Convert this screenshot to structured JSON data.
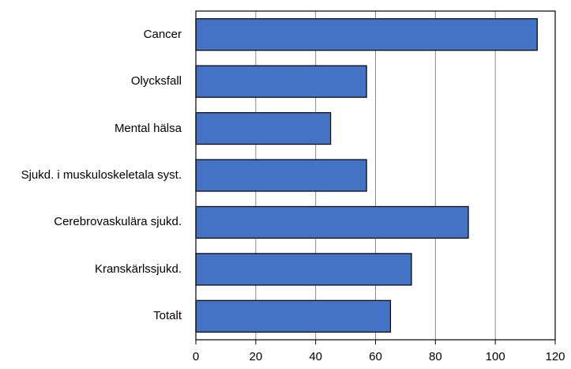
{
  "chart_data": {
    "type": "hbar",
    "categories": [
      "Cancer",
      "Olycksfall",
      "Mental hälsa",
      "Sjukd. i muskuloskeletala syst.",
      "Cerebrovaskulära sjukd.",
      "Kranskärlssjukd.",
      "Totalt"
    ],
    "values": [
      114,
      57,
      45,
      57,
      91,
      72,
      65
    ],
    "color": "#4472c4",
    "xlim": [
      0,
      120
    ],
    "xticks": [
      0,
      20,
      40,
      60,
      80,
      100,
      120
    ],
    "grid": true
  }
}
